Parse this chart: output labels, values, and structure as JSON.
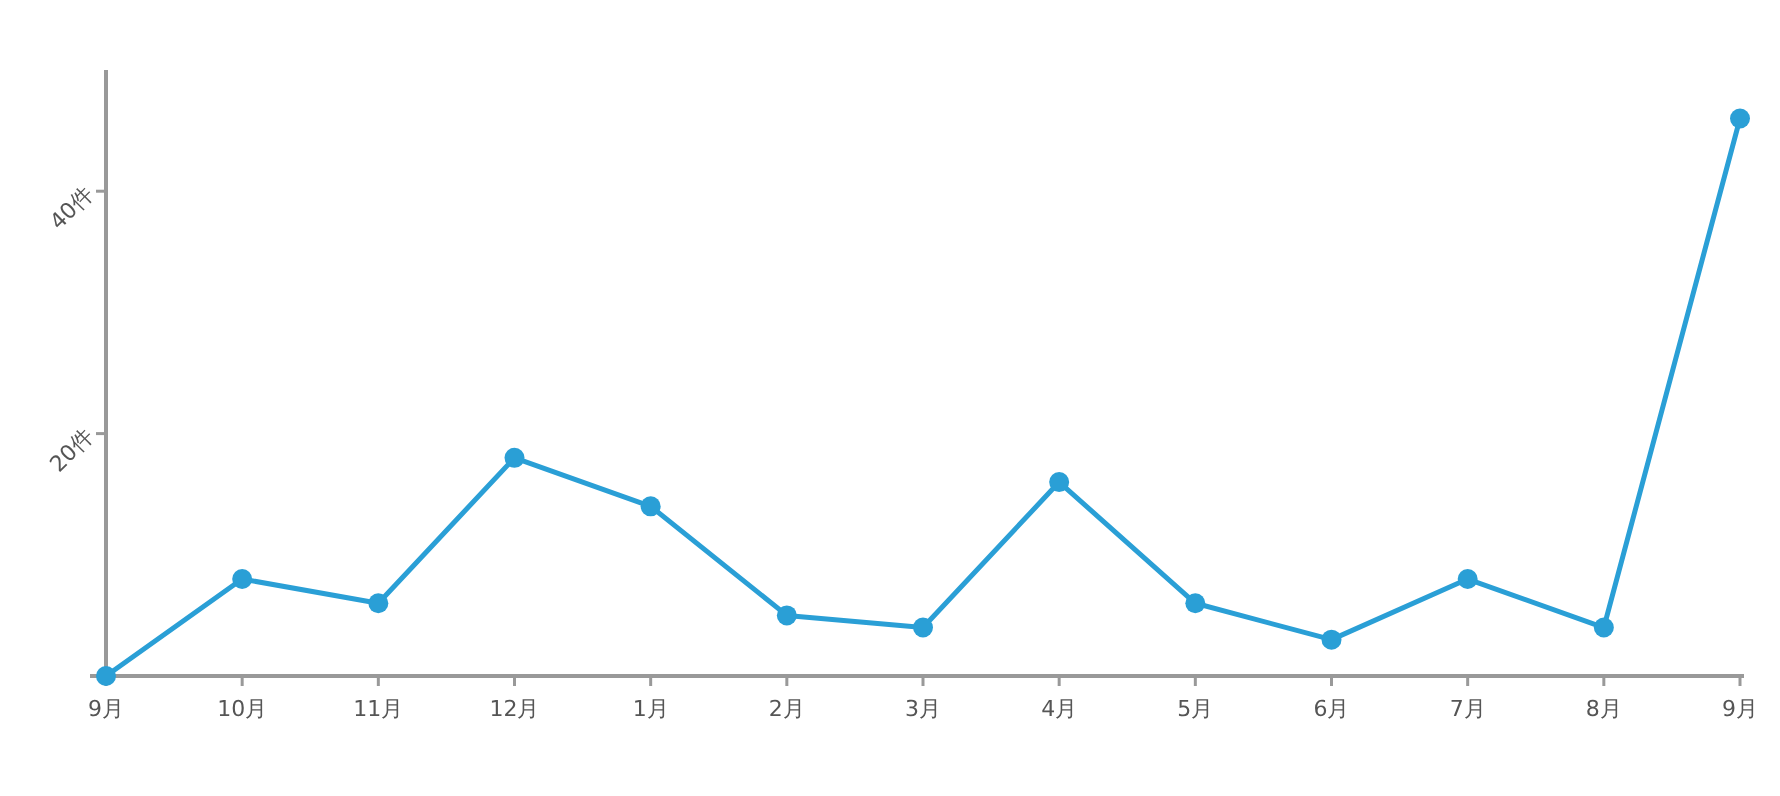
{
  "chart_data": {
    "type": "line",
    "categories": [
      "9月",
      "10月",
      "11月",
      "12月",
      "1月",
      "2月",
      "3月",
      "4月",
      "5月",
      "6月",
      "7月",
      "8月",
      "9月"
    ],
    "values": [
      0,
      8,
      6,
      18,
      14,
      5,
      4,
      16,
      6,
      3,
      8,
      4,
      46
    ],
    "color": "#2a9fd6",
    "marker": "circle",
    "ylim": [
      0,
      50
    ],
    "yticks": [
      {
        "value": 20,
        "label": "20件"
      },
      {
        "value": 40,
        "label": "40件"
      }
    ],
    "grid": false
  }
}
